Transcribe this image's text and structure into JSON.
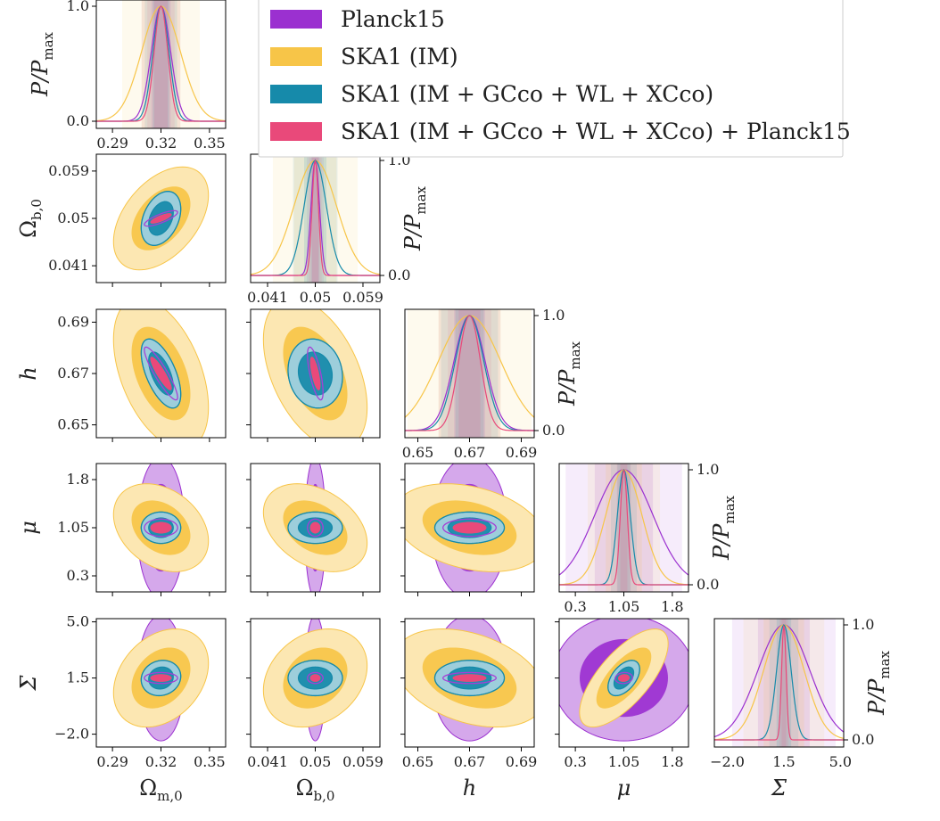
{
  "chart_data": {
    "type": "corner",
    "parameters": [
      {
        "id": "om",
        "label": "Ω",
        "sub": "m,0",
        "fiducial": 0.32,
        "range": [
          0.28,
          0.36
        ],
        "ticks": [
          0.29,
          0.32,
          0.35
        ],
        "tick_labels": [
          "0.29",
          "0.32",
          "0.35"
        ]
      },
      {
        "id": "ob",
        "label": "Ω",
        "sub": "b,0",
        "fiducial": 0.05,
        "range": [
          0.0378,
          0.0622
        ],
        "ticks": [
          0.041,
          0.05,
          0.059
        ],
        "tick_labels": [
          "0.041",
          "0.05",
          "0.059"
        ]
      },
      {
        "id": "h",
        "label": "h",
        "sub": "",
        "fiducial": 0.67,
        "range": [
          0.645,
          0.695
        ],
        "ticks": [
          0.65,
          0.67,
          0.69
        ],
        "tick_labels": [
          "0.65",
          "0.67",
          "0.69"
        ]
      },
      {
        "id": "mu",
        "label": "μ",
        "sub": "",
        "fiducial": 1.05,
        "range": [
          0.05,
          2.05
        ],
        "ticks": [
          0.3,
          1.05,
          1.8
        ],
        "tick_labels": [
          "0.3",
          "1.05",
          "1.8"
        ]
      },
      {
        "id": "sig",
        "label": "Σ",
        "sub": "",
        "fiducial": 1.5,
        "range": [
          -2.8,
          5.2
        ],
        "ticks": [
          -2.0,
          1.5,
          5.0
        ],
        "tick_labels": [
          "−2.0",
          "1.5",
          "5.0"
        ]
      }
    ],
    "series": [
      {
        "name": "Planck15",
        "color": "#9b30d0",
        "style": "filled",
        "sigma": {
          "om": 0.006,
          "ob": 0.0008,
          "h": 0.006,
          "mu": 0.45,
          "sig": 1.6
        },
        "corr": {
          "om-ob": 0.85,
          "om-h": -0.93,
          "ob-h": -0.75,
          "om-mu": 0,
          "ob-mu": 0,
          "h-mu": 0,
          "om-sig": 0,
          "ob-sig": 0,
          "h-sig": 0,
          "mu-sig": 0
        }
      },
      {
        "name": "SKA1 (IM)",
        "color": "#f7c548",
        "style": "filled",
        "sigma": {
          "om": 0.012,
          "ob": 0.004,
          "h": 0.012,
          "mu": 0.28,
          "sig": 1.25
        },
        "corr": {
          "om-ob": 0.45,
          "om-h": -0.45,
          "ob-h": -0.45,
          "om-mu": -0.3,
          "ob-mu": -0.35,
          "h-mu": -0.3,
          "om-sig": 0.3,
          "ob-sig": 0.25,
          "h-sig": -0.35,
          "mu-sig": 0.7
        }
      },
      {
        "name": "SKA1 (IM + GCco + WL + XCco)",
        "color": "#168aaa",
        "style": "filled",
        "sigma": {
          "om": 0.005,
          "ob": 0.0021,
          "h": 0.0055,
          "mu": 0.1,
          "sig": 0.45
        },
        "corr": {
          "om-ob": 0.35,
          "om-h": -0.6,
          "ob-h": -0.1,
          "om-mu": 0,
          "ob-mu": 0,
          "h-mu": 0,
          "om-sig": 0.1,
          "ob-sig": 0,
          "h-sig": 0,
          "mu-sig": 0.5
        }
      },
      {
        "name": "SKA1 (IM + GCco + WL + XCco)  +  Planck15",
        "color": "#e9497a",
        "style": "line",
        "sigma": {
          "om": 0.0042,
          "ob": 0.0006,
          "h": 0.0042,
          "mu": 0.055,
          "sig": 0.14
        },
        "corr": {
          "om-ob": 0.8,
          "om-h": -0.9,
          "ob-h": -0.7,
          "om-mu": 0,
          "ob-mu": 0,
          "h-mu": 0,
          "om-sig": 0,
          "ob-sig": 0,
          "h-sig": 0,
          "mu-sig": 0.1
        }
      }
    ],
    "diag_axis_label": "P/P",
    "diag_axis_sub": "max",
    "diag_ticks": [
      "0.0",
      "1.0"
    ],
    "legend_placement": "top-right",
    "contour_levels": [
      "68%",
      "95%"
    ]
  }
}
